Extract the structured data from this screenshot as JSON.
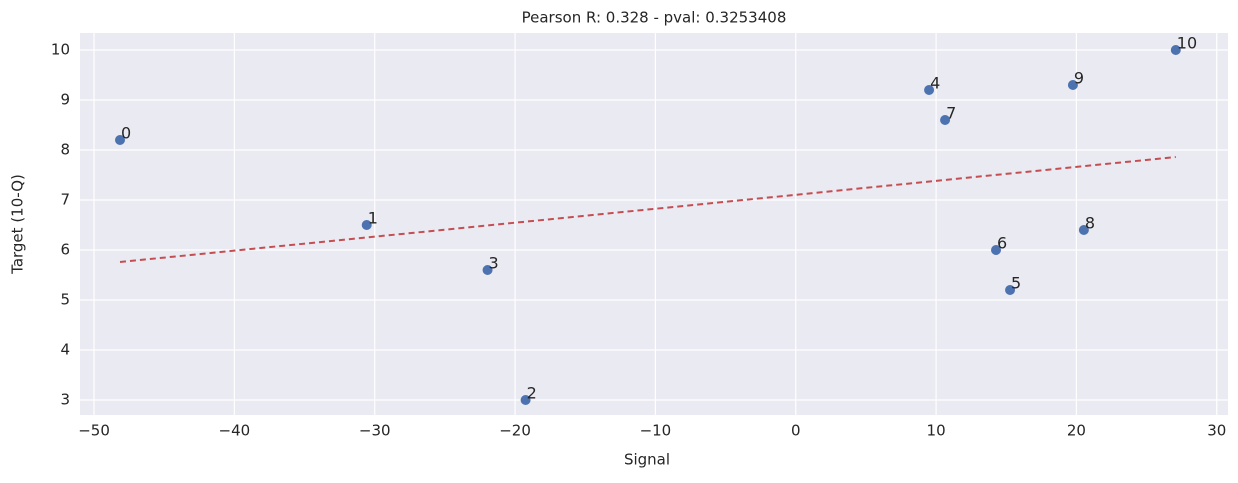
{
  "chart_data": {
    "type": "scatter",
    "title": "Pearson R: 0.328 - pval: 0.3253408",
    "x_label": "Signal",
    "y_label": "Target (10-Q)",
    "x": [
      -48.15,
      -30.57,
      -19.25,
      -21.96,
      9.5,
      15.27,
      14.27,
      10.64,
      20.53,
      19.75,
      27.08
    ],
    "values": [
      8.2,
      6.5,
      3.0,
      5.6,
      9.2,
      5.2,
      6.0,
      8.6,
      6.4,
      9.3,
      10.0
    ],
    "point_labels": [
      "0",
      "1",
      "2",
      "3",
      "4",
      "5",
      "6",
      "7",
      "8",
      "9",
      "10"
    ],
    "color": "#4c72b0",
    "fit_line": {
      "x": [
        -48.15,
        27.08
      ],
      "values": [
        5.76,
        7.86
      ],
      "color": "#c44e52",
      "dashed": true
    },
    "xlim": [
      -51.0,
      30.8
    ],
    "ylim": [
      2.7,
      10.34
    ],
    "xticks": [
      {
        "value": -50,
        "label": "−50"
      },
      {
        "value": -40,
        "label": "−40"
      },
      {
        "value": -30,
        "label": "−30"
      },
      {
        "value": -20,
        "label": "−20"
      },
      {
        "value": -10,
        "label": "−10"
      },
      0,
      10,
      20,
      30
    ],
    "yticks": [
      3,
      4,
      5,
      6,
      7,
      8,
      9,
      10
    ],
    "grid": true
  }
}
